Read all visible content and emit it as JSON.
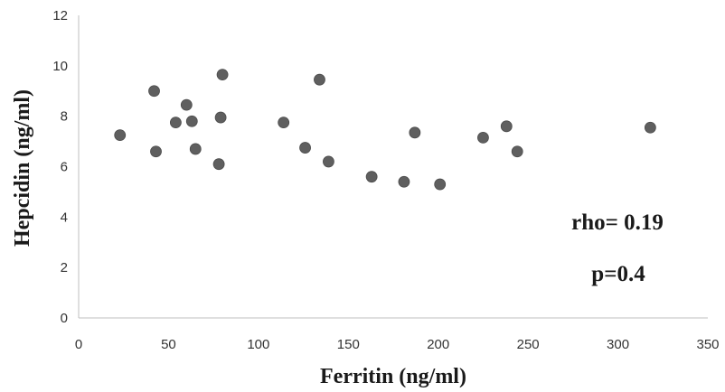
{
  "chart_data": {
    "type": "scatter",
    "title": "",
    "xlabel": "Ferritin (ng/ml)",
    "ylabel": "Hepcidin (ng/ml)",
    "xlim": [
      0,
      350
    ],
    "ylim": [
      0,
      12
    ],
    "x_ticks": [
      "0",
      "50",
      "100",
      "150",
      "200",
      "250",
      "300",
      "350"
    ],
    "y_ticks": [
      "0",
      "2",
      "4",
      "6",
      "8",
      "10",
      "12"
    ],
    "grid": false,
    "marker_color": "#5f5f5f",
    "annotations": [
      "rho= 0.19",
      "p=0.4"
    ],
    "series": [
      {
        "points": [
          [
            23,
            7.25
          ],
          [
            42,
            9.0
          ],
          [
            43,
            6.6
          ],
          [
            54,
            7.75
          ],
          [
            60,
            8.45
          ],
          [
            63,
            7.8
          ],
          [
            65,
            6.7
          ],
          [
            78,
            6.1
          ],
          [
            79,
            7.95
          ],
          [
            80,
            9.65
          ],
          [
            114,
            7.75
          ],
          [
            126,
            6.75
          ],
          [
            134,
            9.45
          ],
          [
            139,
            6.2
          ],
          [
            163,
            5.6
          ],
          [
            181,
            5.4
          ],
          [
            187,
            7.35
          ],
          [
            201,
            5.3
          ],
          [
            225,
            7.15
          ],
          [
            238,
            7.6
          ],
          [
            244,
            6.6
          ],
          [
            318,
            7.55
          ]
        ]
      }
    ]
  }
}
